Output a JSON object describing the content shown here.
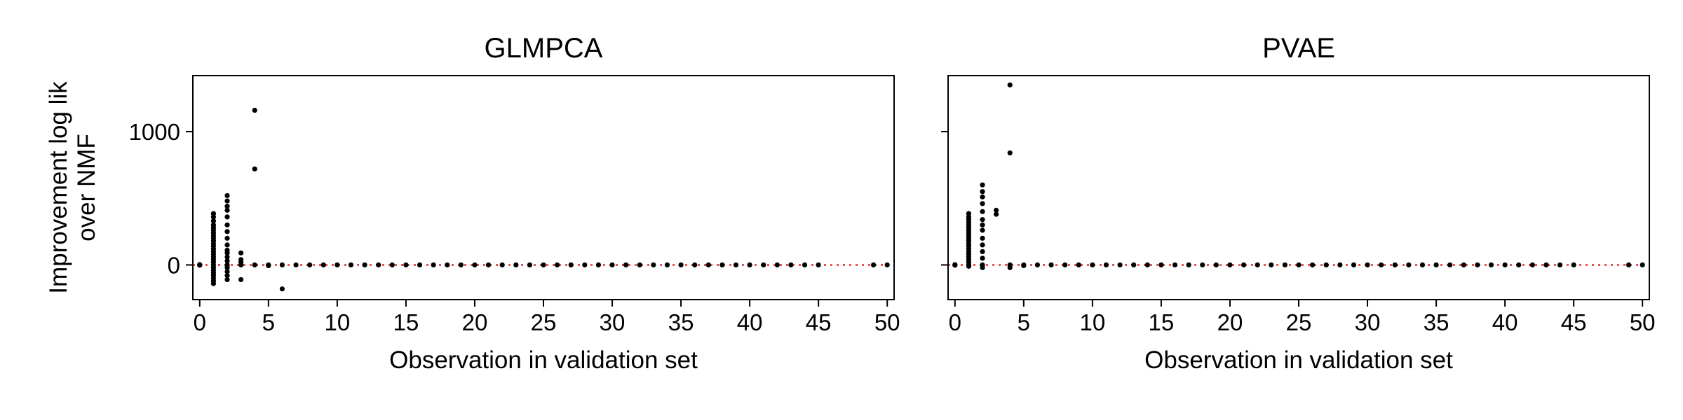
{
  "chart_data": [
    {
      "type": "scatter",
      "title": "GLMPCA",
      "xlabel": "Observation in validation set",
      "ylabel": [
        "Improvement log lik",
        "over NMF"
      ],
      "xlim": [
        -0.5,
        50.5
      ],
      "ylim": [
        -260,
        1420
      ],
      "xticks": [
        0,
        5,
        10,
        15,
        20,
        25,
        30,
        35,
        40,
        45,
        50
      ],
      "yticks": [
        0,
        1000
      ],
      "reference_line": {
        "y": 0,
        "style": "dotted",
        "color": "#e03030"
      },
      "point_color": "#000000",
      "series": [
        {
          "x": 0,
          "y": [
            0,
            2,
            -2,
            1,
            -1
          ]
        },
        {
          "x": 1,
          "y": [
            -140,
            -120,
            -100,
            -80,
            -60,
            -40,
            -20,
            0,
            20,
            40,
            60,
            80,
            100,
            120,
            140,
            160,
            180,
            200,
            220,
            240,
            260,
            280,
            300,
            330,
            360,
            385
          ]
        },
        {
          "x": 2,
          "y": [
            -110,
            -80,
            -50,
            -20,
            0,
            30,
            60,
            90,
            110,
            150,
            200,
            250,
            300,
            360,
            410,
            440,
            480,
            520
          ]
        },
        {
          "x": 3,
          "y": [
            -110,
            0,
            20,
            40,
            90
          ]
        },
        {
          "x": 4,
          "y": [
            0,
            720,
            1160
          ]
        },
        {
          "x": 5,
          "y": [
            0,
            -5
          ]
        },
        {
          "x": 6,
          "y": [
            0,
            -180
          ]
        },
        {
          "x": 7,
          "y": [
            0
          ]
        },
        {
          "x": 8,
          "y": [
            0
          ]
        },
        {
          "x": 9,
          "y": [
            0
          ]
        },
        {
          "x": 10,
          "y": [
            0
          ]
        },
        {
          "x": 11,
          "y": [
            0
          ]
        },
        {
          "x": 12,
          "y": [
            0
          ]
        },
        {
          "x": 13,
          "y": [
            0
          ]
        },
        {
          "x": 14,
          "y": [
            0
          ]
        },
        {
          "x": 15,
          "y": [
            0
          ]
        },
        {
          "x": 16,
          "y": [
            0
          ]
        },
        {
          "x": 17,
          "y": [
            0
          ]
        },
        {
          "x": 18,
          "y": [
            0
          ]
        },
        {
          "x": 19,
          "y": [
            0
          ]
        },
        {
          "x": 20,
          "y": [
            0
          ]
        },
        {
          "x": 21,
          "y": [
            0
          ]
        },
        {
          "x": 22,
          "y": [
            0
          ]
        },
        {
          "x": 23,
          "y": [
            0
          ]
        },
        {
          "x": 24,
          "y": [
            0
          ]
        },
        {
          "x": 25,
          "y": [
            0
          ]
        },
        {
          "x": 26,
          "y": [
            0
          ]
        },
        {
          "x": 27,
          "y": [
            0
          ]
        },
        {
          "x": 28,
          "y": [
            0
          ]
        },
        {
          "x": 29,
          "y": [
            0
          ]
        },
        {
          "x": 30,
          "y": [
            0
          ]
        },
        {
          "x": 31,
          "y": [
            0
          ]
        },
        {
          "x": 32,
          "y": [
            0
          ]
        },
        {
          "x": 33,
          "y": [
            0
          ]
        },
        {
          "x": 34,
          "y": [
            0
          ]
        },
        {
          "x": 35,
          "y": [
            0
          ]
        },
        {
          "x": 36,
          "y": [
            0
          ]
        },
        {
          "x": 37,
          "y": [
            0
          ]
        },
        {
          "x": 38,
          "y": [
            0
          ]
        },
        {
          "x": 39,
          "y": [
            0
          ]
        },
        {
          "x": 40,
          "y": [
            0
          ]
        },
        {
          "x": 41,
          "y": [
            0
          ]
        },
        {
          "x": 42,
          "y": [
            0
          ]
        },
        {
          "x": 43,
          "y": [
            0
          ]
        },
        {
          "x": 44,
          "y": [
            0
          ]
        },
        {
          "x": 45,
          "y": [
            0
          ]
        },
        {
          "x": 49,
          "y": [
            0
          ]
        },
        {
          "x": 50,
          "y": [
            0
          ]
        }
      ]
    },
    {
      "type": "scatter",
      "title": "PVAE",
      "xlabel": "Observation in validation set",
      "ylabel": "",
      "xlim": [
        -0.5,
        50.5
      ],
      "ylim": [
        -260,
        1420
      ],
      "xticks": [
        0,
        5,
        10,
        15,
        20,
        25,
        30,
        35,
        40,
        45,
        50
      ],
      "yticks": [
        0,
        1000
      ],
      "reference_line": {
        "y": 0,
        "style": "dotted",
        "color": "#e03030"
      },
      "point_color": "#000000",
      "series": [
        {
          "x": 0,
          "y": [
            0,
            2,
            -2
          ]
        },
        {
          "x": 1,
          "y": [
            -10,
            0,
            20,
            40,
            60,
            80,
            100,
            120,
            140,
            160,
            180,
            200,
            220,
            240,
            260,
            280,
            300,
            320,
            340,
            360,
            385
          ]
        },
        {
          "x": 2,
          "y": [
            -20,
            0,
            50,
            100,
            150,
            200,
            260,
            300,
            340,
            400,
            460,
            510,
            550,
            600
          ]
        },
        {
          "x": 3,
          "y": [
            380,
            410
          ]
        },
        {
          "x": 4,
          "y": [
            -20,
            0,
            840,
            1350
          ]
        },
        {
          "x": 5,
          "y": [
            0,
            -5
          ]
        },
        {
          "x": 6,
          "y": [
            0
          ]
        },
        {
          "x": 7,
          "y": [
            0
          ]
        },
        {
          "x": 8,
          "y": [
            0
          ]
        },
        {
          "x": 9,
          "y": [
            0
          ]
        },
        {
          "x": 10,
          "y": [
            0
          ]
        },
        {
          "x": 11,
          "y": [
            0
          ]
        },
        {
          "x": 12,
          "y": [
            0
          ]
        },
        {
          "x": 13,
          "y": [
            0
          ]
        },
        {
          "x": 14,
          "y": [
            0
          ]
        },
        {
          "x": 15,
          "y": [
            0
          ]
        },
        {
          "x": 16,
          "y": [
            0
          ]
        },
        {
          "x": 17,
          "y": [
            0
          ]
        },
        {
          "x": 18,
          "y": [
            0
          ]
        },
        {
          "x": 19,
          "y": [
            0
          ]
        },
        {
          "x": 20,
          "y": [
            0
          ]
        },
        {
          "x": 21,
          "y": [
            0
          ]
        },
        {
          "x": 22,
          "y": [
            0
          ]
        },
        {
          "x": 23,
          "y": [
            0
          ]
        },
        {
          "x": 24,
          "y": [
            0
          ]
        },
        {
          "x": 25,
          "y": [
            0
          ]
        },
        {
          "x": 26,
          "y": [
            0
          ]
        },
        {
          "x": 27,
          "y": [
            0
          ]
        },
        {
          "x": 28,
          "y": [
            0
          ]
        },
        {
          "x": 29,
          "y": [
            0
          ]
        },
        {
          "x": 30,
          "y": [
            0
          ]
        },
        {
          "x": 31,
          "y": [
            0
          ]
        },
        {
          "x": 32,
          "y": [
            0
          ]
        },
        {
          "x": 33,
          "y": [
            0
          ]
        },
        {
          "x": 34,
          "y": [
            0
          ]
        },
        {
          "x": 35,
          "y": [
            0
          ]
        },
        {
          "x": 36,
          "y": [
            0
          ]
        },
        {
          "x": 37,
          "y": [
            0
          ]
        },
        {
          "x": 38,
          "y": [
            0
          ]
        },
        {
          "x": 39,
          "y": [
            0
          ]
        },
        {
          "x": 40,
          "y": [
            0
          ]
        },
        {
          "x": 41,
          "y": [
            0
          ]
        },
        {
          "x": 42,
          "y": [
            0
          ]
        },
        {
          "x": 43,
          "y": [
            0
          ]
        },
        {
          "x": 44,
          "y": [
            0
          ]
        },
        {
          "x": 45,
          "y": [
            0
          ]
        },
        {
          "x": 49,
          "y": [
            0
          ]
        },
        {
          "x": 50,
          "y": [
            0
          ]
        }
      ]
    }
  ]
}
